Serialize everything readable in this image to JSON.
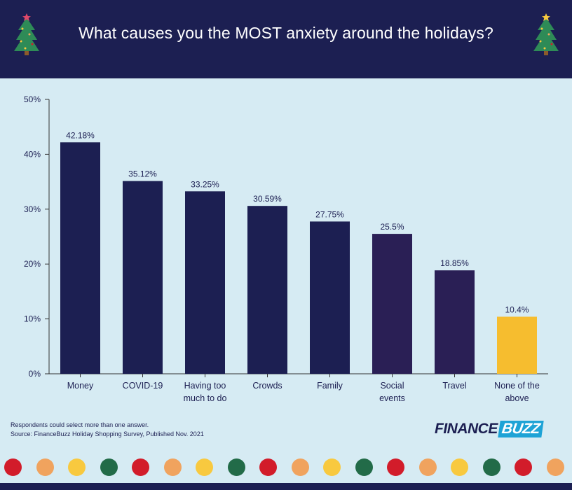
{
  "header": {
    "title": "What causes you the MOST anxiety around the holidays?"
  },
  "chart_data": {
    "type": "bar",
    "title": "What causes you the MOST anxiety around the holidays?",
    "categories": [
      [
        "Money"
      ],
      [
        "COVID-19"
      ],
      [
        "Having too",
        "much to do"
      ],
      [
        "Crowds"
      ],
      [
        "Family"
      ],
      [
        "Social",
        "events"
      ],
      [
        "Travel"
      ],
      [
        "None of the",
        "above"
      ]
    ],
    "values": [
      42.18,
      35.12,
      33.25,
      30.59,
      27.75,
      25.5,
      18.85,
      10.4
    ],
    "value_labels": [
      "42.18%",
      "35.12%",
      "33.25%",
      "30.59%",
      "27.75%",
      "25.5%",
      "18.85%",
      "10.4%"
    ],
    "bar_colors": [
      "#1c1f52",
      "#1c1f52",
      "#1c1f52",
      "#1c1f52",
      "#1c1f52",
      "#2a1f55",
      "#2a1f55",
      "#f6bd2f"
    ],
    "ylim": [
      0,
      50
    ],
    "yticks": [
      0,
      10,
      20,
      30,
      40,
      50
    ],
    "ytick_labels": [
      "0%",
      "10%",
      "20%",
      "30%",
      "40%",
      "50%"
    ],
    "xlabel": "",
    "ylabel": "",
    "grid": false,
    "legend": "none"
  },
  "notes": {
    "line1": "Respondents could select more than one answer.",
    "line2": "Source: FinanceBuzz Holiday Shopping Survey, Published Nov. 2021"
  },
  "logo": {
    "part1": "FINANCE",
    "part2": "BUZZ"
  },
  "decor": {
    "dot_colors": [
      "#d21c2a",
      "#f0a35e",
      "#f8c93f",
      "#226b48",
      "#d21c2a",
      "#f0a35e",
      "#f8c93f",
      "#226b48",
      "#d21c2a",
      "#f0a35e",
      "#f8c93f",
      "#226b48",
      "#d21c2a",
      "#f0a35e",
      "#f8c93f",
      "#226b48",
      "#d21c2a",
      "#f0a35e"
    ]
  },
  "colors": {
    "header_bg": "#1c1f52",
    "chart_bg": "#d6ebf3",
    "tree_green": "#2e8b57",
    "accent_blue": "#1ea3d6"
  }
}
